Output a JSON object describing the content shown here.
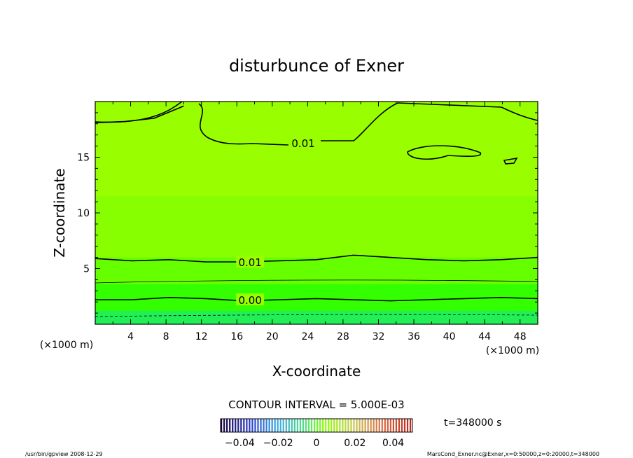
{
  "chart_data": {
    "type": "contour",
    "title": "disturbunce of Exner",
    "xlabel": "X-coordinate",
    "ylabel": "Z-coordinate",
    "x_unit": "(×1000 m)",
    "y_unit": "(×1000 m)",
    "xlim": [
      0,
      50
    ],
    "ylim": [
      0,
      20
    ],
    "x_ticks": [
      4,
      8,
      12,
      16,
      20,
      24,
      28,
      32,
      36,
      40,
      44,
      48
    ],
    "y_ticks": [
      5,
      10,
      15
    ],
    "contour_labels": [
      {
        "text": "0.01",
        "x": 23.5,
        "z": 16.3
      },
      {
        "text": "0.01",
        "x": 17.5,
        "z": 5.6
      },
      {
        "text": "0.00",
        "x": 17.5,
        "z": 2.2
      }
    ],
    "contour_lines": [
      {
        "z": [
          18.1,
          18.2,
          18.5,
          19.6
        ],
        "x_range": [
          0,
          10
        ]
      },
      {
        "z": [
          5.9,
          5.7,
          5.8,
          5.6,
          5.6,
          5.7,
          5.8,
          6.2,
          6.0,
          5.8,
          5.7,
          5.8,
          6.0
        ],
        "x_range": [
          0,
          50
        ]
      },
      {
        "z": [
          2.2,
          2.2,
          2.4,
          2.3,
          2.1,
          2.2,
          2.3,
          2.2,
          2.1,
          2.2,
          2.3,
          2.4,
          2.3
        ],
        "x_range": [
          0,
          50
        ]
      }
    ],
    "contour_interval_text": "CONTOUR INTERVAL = 5.000E-03",
    "colorbar": {
      "ticks": [
        "−0.04",
        "−0.02",
        "0",
        "0.02",
        "0.04"
      ],
      "min": -0.05,
      "max": 0.05
    },
    "time_text": "t=348000 s"
  },
  "footer": {
    "left": "/usr/bin/gpview  2008-12-29",
    "right": "MarsCond_Exner.nc@Exner,x=0:50000,z=0:20000,t=348000"
  },
  "colors": {
    "bg_fill": "#99ff00",
    "band_light": "#88ff00",
    "band_mid": "#66ff00",
    "band_dark": "#33ff00",
    "band_bottom": "#22ee55"
  }
}
